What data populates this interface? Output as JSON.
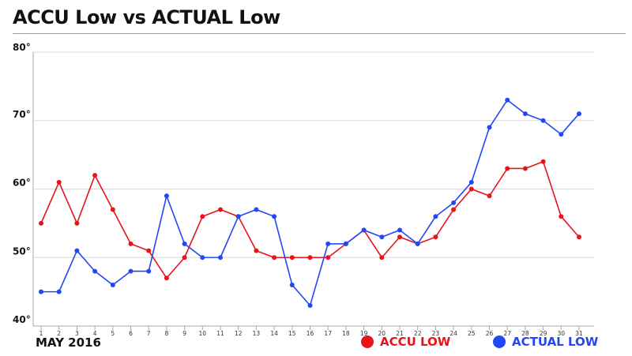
{
  "title": "ACCU Low vs ACTUAL Low",
  "footer_date": "MAY 2016",
  "colors": {
    "accu": "#e8141c",
    "actual": "#2347f5",
    "grid": "#dcdcdc",
    "axis": "#aaaaaa"
  },
  "legend": [
    {
      "label": "ACCU LOW",
      "color": "#e8141c"
    },
    {
      "label": "ACTUAL LOW",
      "color": "#2347f5"
    }
  ],
  "chart_data": {
    "type": "line",
    "title": "ACCU Low vs ACTUAL Low",
    "xlabel": "MAY 2016",
    "ylabel": "",
    "x": [
      1,
      2,
      3,
      4,
      5,
      6,
      7,
      8,
      9,
      10,
      11,
      12,
      13,
      14,
      15,
      16,
      17,
      18,
      19,
      20,
      21,
      22,
      23,
      24,
      25,
      26,
      27,
      28,
      29,
      30,
      31
    ],
    "ylim": [
      40,
      80
    ],
    "yticks": [
      40,
      50,
      60,
      70,
      80
    ],
    "ytick_labels": [
      "40°",
      "50°",
      "60°",
      "70°",
      "80°"
    ],
    "grid": "horizontal",
    "legend_position": "bottom-right",
    "series": [
      {
        "name": "ACCU LOW",
        "color": "#e8141c",
        "values": [
          55,
          61,
          55,
          62,
          57,
          52,
          51,
          47,
          50,
          56,
          57,
          56,
          51,
          50,
          50,
          50,
          50,
          52,
          54,
          50,
          53,
          52,
          53,
          57,
          60,
          59,
          63,
          63,
          64,
          56,
          53
        ]
      },
      {
        "name": "ACTUAL LOW",
        "color": "#2347f5",
        "values": [
          45,
          45,
          51,
          48,
          46,
          48,
          48,
          59,
          52,
          50,
          50,
          56,
          57,
          56,
          46,
          43,
          52,
          52,
          54,
          53,
          54,
          52,
          56,
          58,
          61,
          69,
          73,
          71,
          70,
          68,
          71
        ]
      }
    ]
  }
}
